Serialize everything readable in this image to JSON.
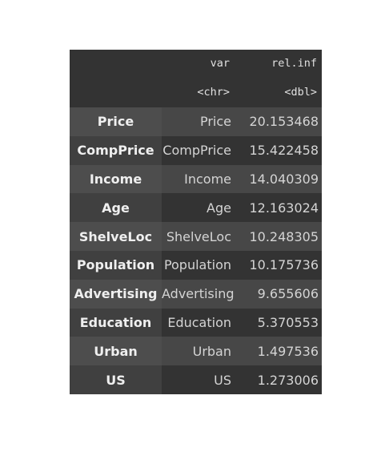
{
  "columns": {
    "name": "",
    "var": "var",
    "rel": "rel.inf"
  },
  "types": {
    "var": "<chr>",
    "rel": "<dbl>"
  },
  "rows": [
    {
      "rowname": "Price",
      "var": "Price",
      "rel_inf": "20.153468"
    },
    {
      "rowname": "CompPrice",
      "var": "CompPrice",
      "rel_inf": "15.422458"
    },
    {
      "rowname": "Income",
      "var": "Income",
      "rel_inf": "14.040309"
    },
    {
      "rowname": "Age",
      "var": "Age",
      "rel_inf": "12.163024"
    },
    {
      "rowname": "ShelveLoc",
      "var": "ShelveLoc",
      "rel_inf": "10.248305"
    },
    {
      "rowname": "Population",
      "var": "Population",
      "rel_inf": "10.175736"
    },
    {
      "rowname": "Advertising",
      "var": "Advertising",
      "rel_inf": "9.655606"
    },
    {
      "rowname": "Education",
      "var": "Education",
      "rel_inf": "5.370553"
    },
    {
      "rowname": "Urban",
      "var": "Urban",
      "rel_inf": "1.497536"
    },
    {
      "rowname": "US",
      "var": "US",
      "rel_inf": "1.273006"
    }
  ]
}
